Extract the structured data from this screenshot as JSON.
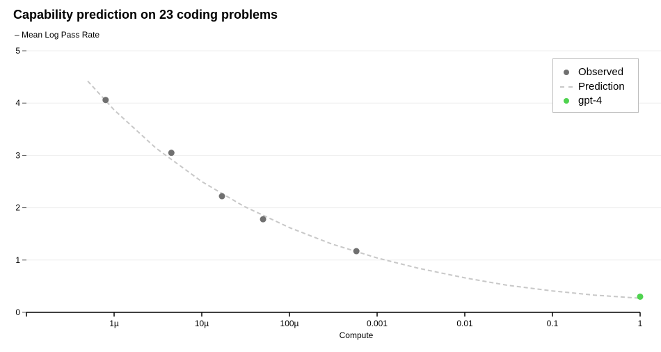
{
  "chart_data": {
    "type": "scatter",
    "title": "Capability prediction on 23 coding problems",
    "ylabel": "– Mean Log Pass Rate",
    "xlabel": "Compute",
    "x_scale": "log",
    "xlim": [
      1e-07,
      1
    ],
    "ylim": [
      0,
      5
    ],
    "x_ticks": [
      {
        "value": 1e-06,
        "label": "1µ"
      },
      {
        "value": 1e-05,
        "label": "10µ"
      },
      {
        "value": 0.0001,
        "label": "100µ"
      },
      {
        "value": 0.001,
        "label": "0.001"
      },
      {
        "value": 0.01,
        "label": "0.01"
      },
      {
        "value": 0.1,
        "label": "0.1"
      },
      {
        "value": 1,
        "label": "1"
      }
    ],
    "y_ticks": [
      0,
      1,
      2,
      3,
      4,
      5
    ],
    "grid": "horizontal",
    "legend_position": "top-right",
    "series": [
      {
        "name": "Observed",
        "kind": "points",
        "color": "#707070",
        "x": [
          8e-07,
          4.5e-06,
          1.7e-05,
          5e-05,
          0.00058
        ],
        "y": [
          4.06,
          3.05,
          2.22,
          1.78,
          1.17
        ]
      },
      {
        "name": "Prediction",
        "kind": "dashed-line",
        "color": "#c8c8c8",
        "x": [
          5e-07,
          1e-06,
          3e-06,
          1e-05,
          3e-05,
          0.0001,
          0.0003,
          0.001,
          0.003,
          0.01,
          0.03,
          0.1,
          0.3,
          1
        ],
        "y": [
          4.42,
          3.87,
          3.14,
          2.5,
          2.03,
          1.62,
          1.31,
          1.04,
          0.84,
          0.66,
          0.52,
          0.41,
          0.33,
          0.27
        ]
      },
      {
        "name": "gpt-4",
        "kind": "points",
        "color": "#4fd34f",
        "x": [
          1
        ],
        "y": [
          0.3
        ]
      }
    ]
  }
}
